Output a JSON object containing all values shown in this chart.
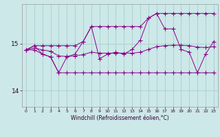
{
  "xlabel": "Windchill (Refroidissement éolien,°C)",
  "background_color": "#cce8e8",
  "grid_color": "#aacccc",
  "line_color": "#880088",
  "xlim": [
    -0.5,
    23.5
  ],
  "ylim": [
    13.65,
    15.85
  ],
  "yticks": [
    14,
    15
  ],
  "xticks": [
    0,
    1,
    2,
    3,
    4,
    5,
    6,
    7,
    8,
    9,
    10,
    11,
    12,
    13,
    14,
    15,
    16,
    17,
    18,
    19,
    20,
    21,
    22,
    23
  ],
  "hours": [
    0,
    1,
    2,
    3,
    4,
    5,
    6,
    7,
    8,
    9,
    10,
    11,
    12,
    13,
    14,
    15,
    16,
    17,
    18,
    19,
    20,
    21,
    22,
    23
  ],
  "obs": [
    14.87,
    14.96,
    14.78,
    14.72,
    14.38,
    14.72,
    14.78,
    15.05,
    15.37,
    14.68,
    14.78,
    14.82,
    14.78,
    14.88,
    15.08,
    15.55,
    15.65,
    15.32,
    15.32,
    14.88,
    14.82,
    14.38,
    14.78,
    15.05
  ],
  "min_line": [
    14.87,
    14.87,
    14.78,
    14.72,
    14.38,
    14.38,
    14.38,
    14.38,
    14.38,
    14.38,
    14.38,
    14.38,
    14.38,
    14.38,
    14.38,
    14.38,
    14.38,
    14.38,
    14.38,
    14.38,
    14.38,
    14.38,
    14.38,
    14.38
  ],
  "max_line": [
    14.87,
    14.96,
    14.96,
    14.96,
    14.96,
    14.96,
    14.96,
    15.05,
    15.37,
    15.37,
    15.37,
    15.37,
    15.37,
    15.37,
    15.37,
    15.55,
    15.65,
    15.65,
    15.65,
    15.65,
    15.65,
    15.65,
    15.65,
    15.65
  ],
  "mean_line": [
    14.87,
    14.91,
    14.87,
    14.84,
    14.74,
    14.73,
    14.74,
    14.77,
    14.82,
    14.8,
    14.8,
    14.8,
    14.8,
    14.8,
    14.82,
    14.88,
    14.94,
    14.96,
    14.97,
    14.97,
    14.96,
    14.93,
    14.92,
    14.94
  ]
}
